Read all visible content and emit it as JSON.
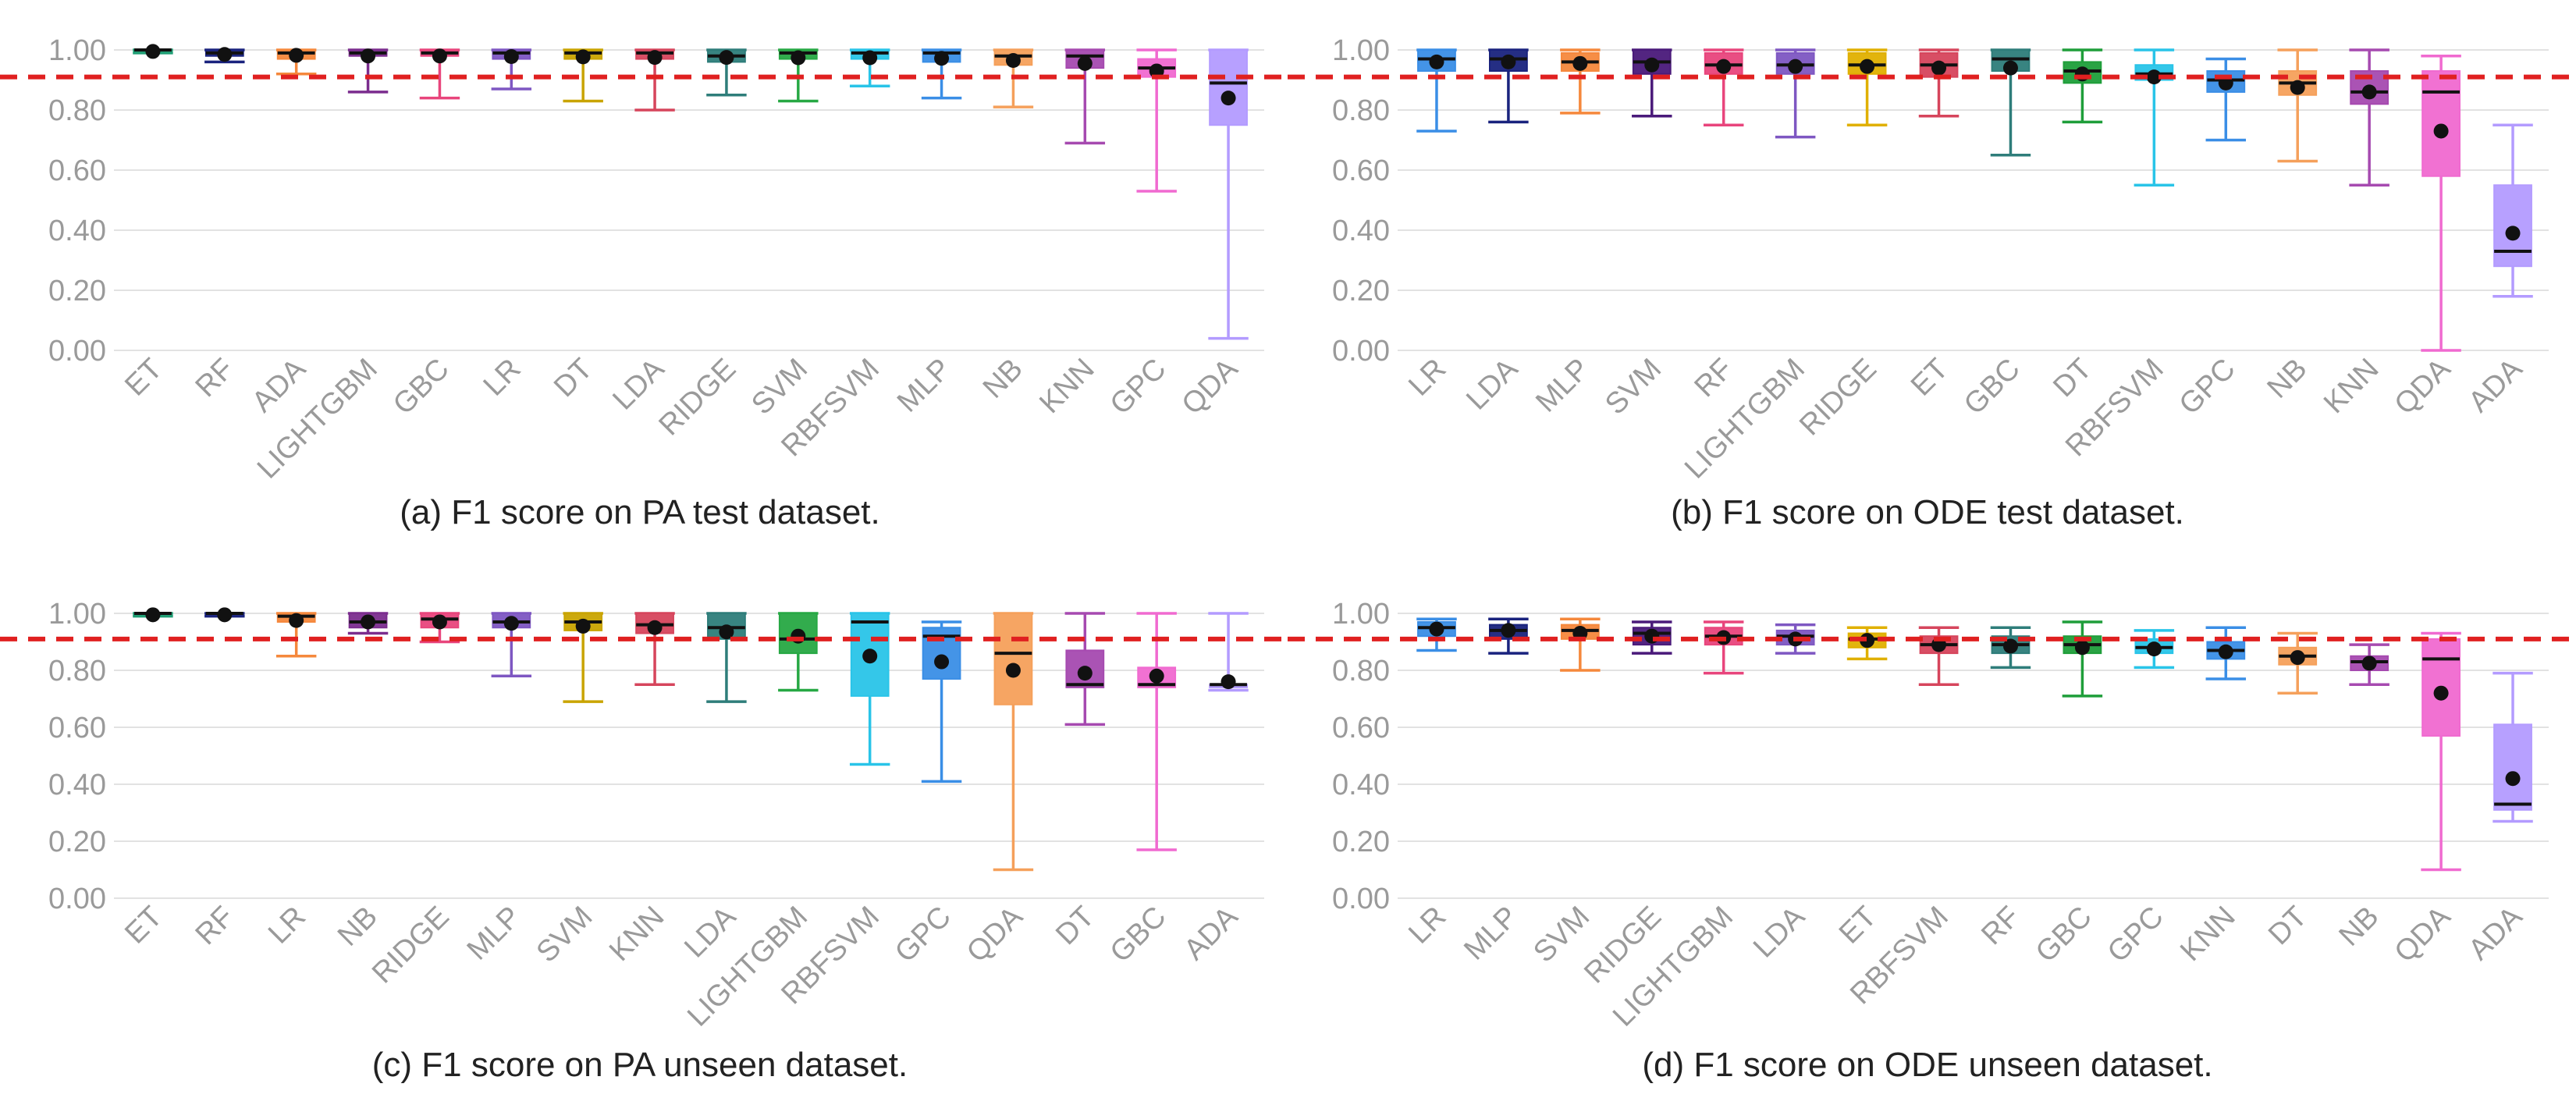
{
  "colors": {
    "ET": "#1f9e74",
    "RF": "#1a237e",
    "ADA_a": "#f5883c",
    "LIGHTGBM": "#7b2d8e",
    "GBC": "#e8457c",
    "LR": "#7e57c2",
    "DT": "#c9a400",
    "LDA": "#d6455c",
    "RIDGE": "#2e7d7a",
    "SVM": "#27a844",
    "RBFSVM": "#29c4e8",
    "MLP": "#3a8ee6",
    "NB": "#f5a05b",
    "KNN": "#a64ab0",
    "GPC": "#f06ad0",
    "QDA": "#b39bff",
    "reference_line": "#e02020",
    "grid": "#e2e2e2",
    "axis_text": "#9a9a9a"
  },
  "chart_data": [
    {
      "id": "a",
      "type": "box",
      "caption": "(a) F1 score on PA test dataset.",
      "ylim": [
        0,
        1.0
      ],
      "yticks": [
        "0.00",
        "0.20",
        "0.40",
        "0.60",
        "0.80",
        "1.00"
      ],
      "reference_line": 0.91,
      "boxes": [
        {
          "label": "ET",
          "color": "#1f9e74",
          "min": 0.99,
          "q1": 0.99,
          "median": 1.0,
          "q3": 1.0,
          "max": 1.0,
          "mean": 0.995
        },
        {
          "label": "RF",
          "color": "#1a237e",
          "min": 0.96,
          "q1": 0.98,
          "median": 0.99,
          "q3": 1.0,
          "max": 1.0,
          "mean": 0.985
        },
        {
          "label": "ADA",
          "color": "#f5883c",
          "min": 0.92,
          "q1": 0.97,
          "median": 0.99,
          "q3": 1.0,
          "max": 1.0,
          "mean": 0.982
        },
        {
          "label": "LIGHTGBM",
          "color": "#7b2d8e",
          "min": 0.86,
          "q1": 0.98,
          "median": 0.99,
          "q3": 1.0,
          "max": 1.0,
          "mean": 0.98
        },
        {
          "label": "GBC",
          "color": "#e8457c",
          "min": 0.84,
          "q1": 0.98,
          "median": 0.99,
          "q3": 1.0,
          "max": 1.0,
          "mean": 0.98
        },
        {
          "label": "LR",
          "color": "#7e57c2",
          "min": 0.87,
          "q1": 0.97,
          "median": 0.99,
          "q3": 1.0,
          "max": 1.0,
          "mean": 0.978
        },
        {
          "label": "DT",
          "color": "#c9a400",
          "min": 0.83,
          "q1": 0.97,
          "median": 0.99,
          "q3": 1.0,
          "max": 1.0,
          "mean": 0.977
        },
        {
          "label": "LDA",
          "color": "#d6455c",
          "min": 0.8,
          "q1": 0.97,
          "median": 0.99,
          "q3": 1.0,
          "max": 1.0,
          "mean": 0.975
        },
        {
          "label": "RIDGE",
          "color": "#2e7d7a",
          "min": 0.85,
          "q1": 0.96,
          "median": 0.98,
          "q3": 1.0,
          "max": 1.0,
          "mean": 0.975
        },
        {
          "label": "SVM",
          "color": "#27a844",
          "min": 0.83,
          "q1": 0.97,
          "median": 0.99,
          "q3": 1.0,
          "max": 1.0,
          "mean": 0.974
        },
        {
          "label": "RBFSVM",
          "color": "#29c4e8",
          "min": 0.88,
          "q1": 0.97,
          "median": 0.99,
          "q3": 1.0,
          "max": 1.0,
          "mean": 0.974
        },
        {
          "label": "MLP",
          "color": "#3a8ee6",
          "min": 0.84,
          "q1": 0.96,
          "median": 0.99,
          "q3": 1.0,
          "max": 1.0,
          "mean": 0.972
        },
        {
          "label": "NB",
          "color": "#f5a05b",
          "min": 0.81,
          "q1": 0.95,
          "median": 0.98,
          "q3": 1.0,
          "max": 1.0,
          "mean": 0.965
        },
        {
          "label": "KNN",
          "color": "#a64ab0",
          "min": 0.69,
          "q1": 0.94,
          "median": 0.98,
          "q3": 1.0,
          "max": 1.0,
          "mean": 0.955
        },
        {
          "label": "GPC",
          "color": "#f06ad0",
          "min": 0.53,
          "q1": 0.91,
          "median": 0.94,
          "q3": 0.97,
          "max": 1.0,
          "mean": 0.93
        },
        {
          "label": "QDA",
          "color": "#b39bff",
          "min": 0.04,
          "q1": 0.75,
          "median": 0.89,
          "q3": 1.0,
          "max": 1.0,
          "mean": 0.84
        }
      ]
    },
    {
      "id": "b",
      "type": "box",
      "caption": "(b) F1 score on ODE test dataset.",
      "ylim": [
        0,
        1.0
      ],
      "yticks": [
        "0.00",
        "0.20",
        "0.40",
        "0.60",
        "0.80",
        "1.00"
      ],
      "reference_line": 0.91,
      "boxes": [
        {
          "label": "LR",
          "color": "#3a8ee6",
          "min": 0.73,
          "q1": 0.93,
          "median": 0.97,
          "q3": 1.0,
          "max": 1.0,
          "mean": 0.96
        },
        {
          "label": "LDA",
          "color": "#1a237e",
          "min": 0.76,
          "q1": 0.93,
          "median": 0.97,
          "q3": 1.0,
          "max": 1.0,
          "mean": 0.96
        },
        {
          "label": "MLP",
          "color": "#f5883c",
          "min": 0.79,
          "q1": 0.93,
          "median": 0.96,
          "q3": 0.99,
          "max": 1.0,
          "mean": 0.955
        },
        {
          "label": "SVM",
          "color": "#4a1a7a",
          "min": 0.78,
          "q1": 0.92,
          "median": 0.96,
          "q3": 1.0,
          "max": 1.0,
          "mean": 0.95
        },
        {
          "label": "RF",
          "color": "#e8457c",
          "min": 0.75,
          "q1": 0.92,
          "median": 0.95,
          "q3": 0.99,
          "max": 1.0,
          "mean": 0.945
        },
        {
          "label": "LIGHTGBM",
          "color": "#7e57c2",
          "min": 0.71,
          "q1": 0.92,
          "median": 0.95,
          "q3": 0.99,
          "max": 1.0,
          "mean": 0.945
        },
        {
          "label": "RIDGE",
          "color": "#e0b000",
          "min": 0.75,
          "q1": 0.92,
          "median": 0.95,
          "q3": 0.99,
          "max": 1.0,
          "mean": 0.945
        },
        {
          "label": "ET",
          "color": "#d6455c",
          "min": 0.78,
          "q1": 0.91,
          "median": 0.95,
          "q3": 0.99,
          "max": 1.0,
          "mean": 0.94
        },
        {
          "label": "GBC",
          "color": "#2e7d7a",
          "min": 0.65,
          "q1": 0.93,
          "median": 0.97,
          "q3": 1.0,
          "max": 1.0,
          "mean": 0.94
        },
        {
          "label": "DT",
          "color": "#1f9e3a",
          "min": 0.76,
          "q1": 0.89,
          "median": 0.93,
          "q3": 0.96,
          "max": 1.0,
          "mean": 0.92
        },
        {
          "label": "RBFSVM",
          "color": "#29c4e8",
          "min": 0.55,
          "q1": 0.9,
          "median": 0.92,
          "q3": 0.95,
          "max": 1.0,
          "mean": 0.91
        },
        {
          "label": "GPC",
          "color": "#3a8ee6",
          "min": 0.7,
          "q1": 0.86,
          "median": 0.9,
          "q3": 0.93,
          "max": 0.97,
          "mean": 0.89
        },
        {
          "label": "NB",
          "color": "#f5a05b",
          "min": 0.63,
          "q1": 0.85,
          "median": 0.89,
          "q3": 0.93,
          "max": 1.0,
          "mean": 0.875
        },
        {
          "label": "KNN",
          "color": "#a64ab0",
          "min": 0.55,
          "q1": 0.82,
          "median": 0.86,
          "q3": 0.93,
          "max": 1.0,
          "mean": 0.86
        },
        {
          "label": "QDA",
          "color": "#f06ad0",
          "min": 0.0,
          "q1": 0.58,
          "median": 0.86,
          "q3": 0.93,
          "max": 0.98,
          "mean": 0.73
        },
        {
          "label": "ADA",
          "color": "#b39bff",
          "min": 0.18,
          "q1": 0.28,
          "median": 0.33,
          "q3": 0.55,
          "max": 0.75,
          "mean": 0.39
        }
      ]
    },
    {
      "id": "c",
      "type": "box",
      "caption": "(c) F1 score on PA unseen dataset.",
      "ylim": [
        0,
        1.0
      ],
      "yticks": [
        "0.00",
        "0.20",
        "0.40",
        "0.60",
        "0.80",
        "1.00"
      ],
      "reference_line": 0.91,
      "boxes": [
        {
          "label": "ET",
          "color": "#1f9e74",
          "min": 0.99,
          "q1": 0.99,
          "median": 1.0,
          "q3": 1.0,
          "max": 1.0,
          "mean": 0.995
        },
        {
          "label": "RF",
          "color": "#1a237e",
          "min": 0.99,
          "q1": 0.99,
          "median": 1.0,
          "q3": 1.0,
          "max": 1.0,
          "mean": 0.995
        },
        {
          "label": "LR",
          "color": "#f5883c",
          "min": 0.85,
          "q1": 0.97,
          "median": 0.99,
          "q3": 1.0,
          "max": 1.0,
          "mean": 0.975
        },
        {
          "label": "NB",
          "color": "#7b2d8e",
          "min": 0.93,
          "q1": 0.95,
          "median": 0.97,
          "q3": 1.0,
          "max": 1.0,
          "mean": 0.97
        },
        {
          "label": "RIDGE",
          "color": "#e8457c",
          "min": 0.9,
          "q1": 0.95,
          "median": 0.98,
          "q3": 1.0,
          "max": 1.0,
          "mean": 0.97
        },
        {
          "label": "MLP",
          "color": "#7e57c2",
          "min": 0.78,
          "q1": 0.95,
          "median": 0.97,
          "q3": 1.0,
          "max": 1.0,
          "mean": 0.965
        },
        {
          "label": "SVM",
          "color": "#c9a400",
          "min": 0.69,
          "q1": 0.94,
          "median": 0.97,
          "q3": 1.0,
          "max": 1.0,
          "mean": 0.955
        },
        {
          "label": "KNN",
          "color": "#d6455c",
          "min": 0.75,
          "q1": 0.93,
          "median": 0.96,
          "q3": 1.0,
          "max": 1.0,
          "mean": 0.95
        },
        {
          "label": "LDA",
          "color": "#2e7d7a",
          "min": 0.69,
          "q1": 0.91,
          "median": 0.95,
          "q3": 1.0,
          "max": 1.0,
          "mean": 0.935
        },
        {
          "label": "LIGHTGBM",
          "color": "#27a844",
          "min": 0.73,
          "q1": 0.86,
          "median": 0.91,
          "q3": 1.0,
          "max": 1.0,
          "mean": 0.92
        },
        {
          "label": "RBFSVM",
          "color": "#29c4e8",
          "min": 0.47,
          "q1": 0.71,
          "median": 0.97,
          "q3": 1.0,
          "max": 1.0,
          "mean": 0.85
        },
        {
          "label": "GPC",
          "color": "#3a8ee6",
          "min": 0.41,
          "q1": 0.77,
          "median": 0.92,
          "q3": 0.95,
          "max": 0.97,
          "mean": 0.83
        },
        {
          "label": "QDA",
          "color": "#f5a05b",
          "min": 0.1,
          "q1": 0.68,
          "median": 0.86,
          "q3": 1.0,
          "max": 1.0,
          "mean": 0.8
        },
        {
          "label": "DT",
          "color": "#a64ab0",
          "min": 0.61,
          "q1": 0.74,
          "median": 0.75,
          "q3": 0.87,
          "max": 1.0,
          "mean": 0.79
        },
        {
          "label": "GBC",
          "color": "#f06ad0",
          "min": 0.17,
          "q1": 0.74,
          "median": 0.75,
          "q3": 0.81,
          "max": 1.0,
          "mean": 0.78
        },
        {
          "label": "ADA",
          "color": "#b39bff",
          "min": 0.73,
          "q1": 0.74,
          "median": 0.75,
          "q3": 0.75,
          "max": 1.0,
          "mean": 0.76
        }
      ]
    },
    {
      "id": "d",
      "type": "box",
      "caption": "(d) F1 score on ODE unseen dataset.",
      "ylim": [
        0,
        1.0
      ],
      "yticks": [
        "0.00",
        "0.20",
        "0.40",
        "0.60",
        "0.80",
        "1.00"
      ],
      "reference_line": 0.91,
      "boxes": [
        {
          "label": "LR",
          "color": "#3a8ee6",
          "min": 0.87,
          "q1": 0.92,
          "median": 0.95,
          "q3": 0.97,
          "max": 0.98,
          "mean": 0.945
        },
        {
          "label": "MLP",
          "color": "#1a237e",
          "min": 0.86,
          "q1": 0.91,
          "median": 0.94,
          "q3": 0.96,
          "max": 0.98,
          "mean": 0.94
        },
        {
          "label": "SVM",
          "color": "#f5883c",
          "min": 0.8,
          "q1": 0.91,
          "median": 0.94,
          "q3": 0.96,
          "max": 0.98,
          "mean": 0.93
        },
        {
          "label": "RIDGE",
          "color": "#4a1a7a",
          "min": 0.86,
          "q1": 0.89,
          "median": 0.93,
          "q3": 0.95,
          "max": 0.97,
          "mean": 0.92
        },
        {
          "label": "LIGHTGBM",
          "color": "#e8457c",
          "min": 0.79,
          "q1": 0.89,
          "median": 0.92,
          "q3": 0.95,
          "max": 0.97,
          "mean": 0.915
        },
        {
          "label": "LDA",
          "color": "#7e57c2",
          "min": 0.86,
          "q1": 0.89,
          "median": 0.92,
          "q3": 0.94,
          "max": 0.96,
          "mean": 0.91
        },
        {
          "label": "ET",
          "color": "#e0b000",
          "min": 0.84,
          "q1": 0.88,
          "median": 0.91,
          "q3": 0.93,
          "max": 0.95,
          "mean": 0.905
        },
        {
          "label": "RBFSVM",
          "color": "#d6455c",
          "min": 0.75,
          "q1": 0.86,
          "median": 0.89,
          "q3": 0.92,
          "max": 0.95,
          "mean": 0.89
        },
        {
          "label": "RF",
          "color": "#2e7d7a",
          "min": 0.81,
          "q1": 0.86,
          "median": 0.89,
          "q3": 0.92,
          "max": 0.95,
          "mean": 0.885
        },
        {
          "label": "GBC",
          "color": "#1f9e3a",
          "min": 0.71,
          "q1": 0.86,
          "median": 0.89,
          "q3": 0.92,
          "max": 0.97,
          "mean": 0.88
        },
        {
          "label": "GPC",
          "color": "#29c4e8",
          "min": 0.81,
          "q1": 0.86,
          "median": 0.88,
          "q3": 0.91,
          "max": 0.94,
          "mean": 0.875
        },
        {
          "label": "KNN",
          "color": "#3a8ee6",
          "min": 0.77,
          "q1": 0.84,
          "median": 0.87,
          "q3": 0.9,
          "max": 0.95,
          "mean": 0.865
        },
        {
          "label": "DT",
          "color": "#f5a05b",
          "min": 0.72,
          "q1": 0.82,
          "median": 0.85,
          "q3": 0.88,
          "max": 0.93,
          "mean": 0.845
        },
        {
          "label": "NB",
          "color": "#a64ab0",
          "min": 0.75,
          "q1": 0.8,
          "median": 0.83,
          "q3": 0.85,
          "max": 0.89,
          "mean": 0.825
        },
        {
          "label": "QDA",
          "color": "#f06ad0",
          "min": 0.1,
          "q1": 0.57,
          "median": 0.84,
          "q3": 0.91,
          "max": 0.93,
          "mean": 0.72
        },
        {
          "label": "ADA",
          "color": "#b39bff",
          "min": 0.27,
          "q1": 0.31,
          "median": 0.33,
          "q3": 0.61,
          "max": 0.79,
          "mean": 0.42
        }
      ]
    }
  ]
}
